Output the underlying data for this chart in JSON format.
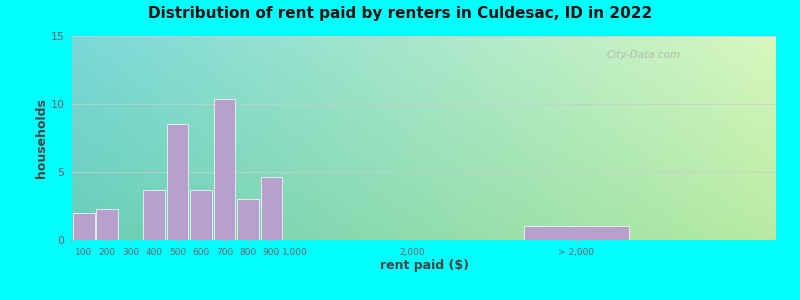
{
  "title": "Distribution of rent paid by renters in Culdesac, ID in 2022",
  "xlabel": "rent paid ($)",
  "ylabel": "households",
  "background_outer": "#00FFFF",
  "bar_color": "#B8A0CC",
  "categories": [
    "100",
    "200",
    "300",
    "400",
    "500",
    "600",
    "700",
    "800",
    "900",
    "1,000",
    "2,000",
    "> 2,000"
  ],
  "values": [
    2,
    2.3,
    0,
    3.7,
    8.5,
    3.7,
    10.4,
    3,
    4.6,
    0,
    0,
    1
  ],
  "ylim": [
    0,
    15
  ],
  "yticks": [
    0,
    5,
    10,
    15
  ],
  "watermark": "City-Data.com",
  "plot_bg_tl": "#7ADADA",
  "plot_bg_tr": "#E8F5E0",
  "plot_bg_bl": "#DAFAFA",
  "plot_bg_br": "#F5FFF0",
  "grid_color": "#CCCCCC",
  "tick_color": "#666666",
  "bar_edge_color": "#FFFFFF"
}
